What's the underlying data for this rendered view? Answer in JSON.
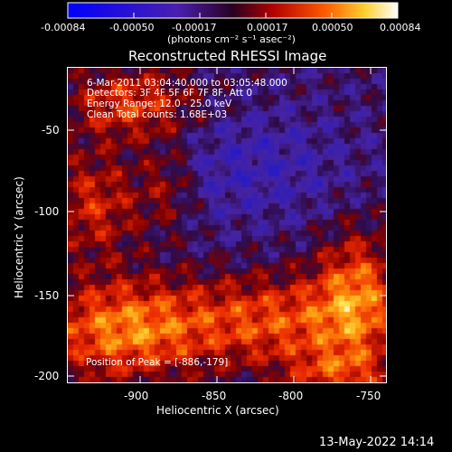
{
  "colorbar": {
    "ticks": [
      "-0.00084",
      "-0.00050",
      "-0.00017",
      "0.00017",
      "0.00050",
      "0.00084"
    ],
    "units": "(photons cm⁻² s⁻¹ asec⁻²)"
  },
  "title": "Reconstructed RHESSI Image",
  "info": {
    "line1": "6-Mar-2011 03:04:40.000 to 03:05:48.000",
    "line2": "Detectors: 3F 4F 5F 6F 7F 8F, Att 0",
    "line3": "Energy Range: 12.0 - 25.0 keV",
    "line4": "Clean     Total counts: 1.68E+03",
    "peak": "Position of Peak = [-886,-179]"
  },
  "axes": {
    "xlabel": "Heliocentric X (arcsec)",
    "ylabel": "Heliocentric Y (arcsec)",
    "xticks": [
      "-900",
      "-850",
      "-800",
      "-750"
    ],
    "yticks": [
      "-50",
      "-100",
      "-150",
      "-200"
    ]
  },
  "footer": {
    "timestamp": "13-May-2022 14:14"
  }
}
